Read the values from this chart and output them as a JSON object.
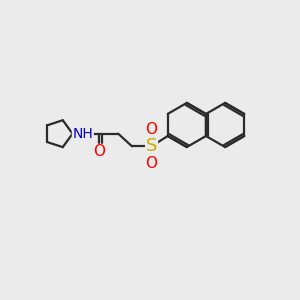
{
  "bg_color": "#ebebeb",
  "bond_color": "#2b2b2b",
  "bond_width": 1.6,
  "atom_colors": {
    "O": "#ff0000",
    "N": "#0000cc",
    "S": "#ccaa00",
    "C": "#2b2b2b"
  },
  "naph_bl": 0.75,
  "chain_bl": 0.78,
  "cp_r": 0.48
}
